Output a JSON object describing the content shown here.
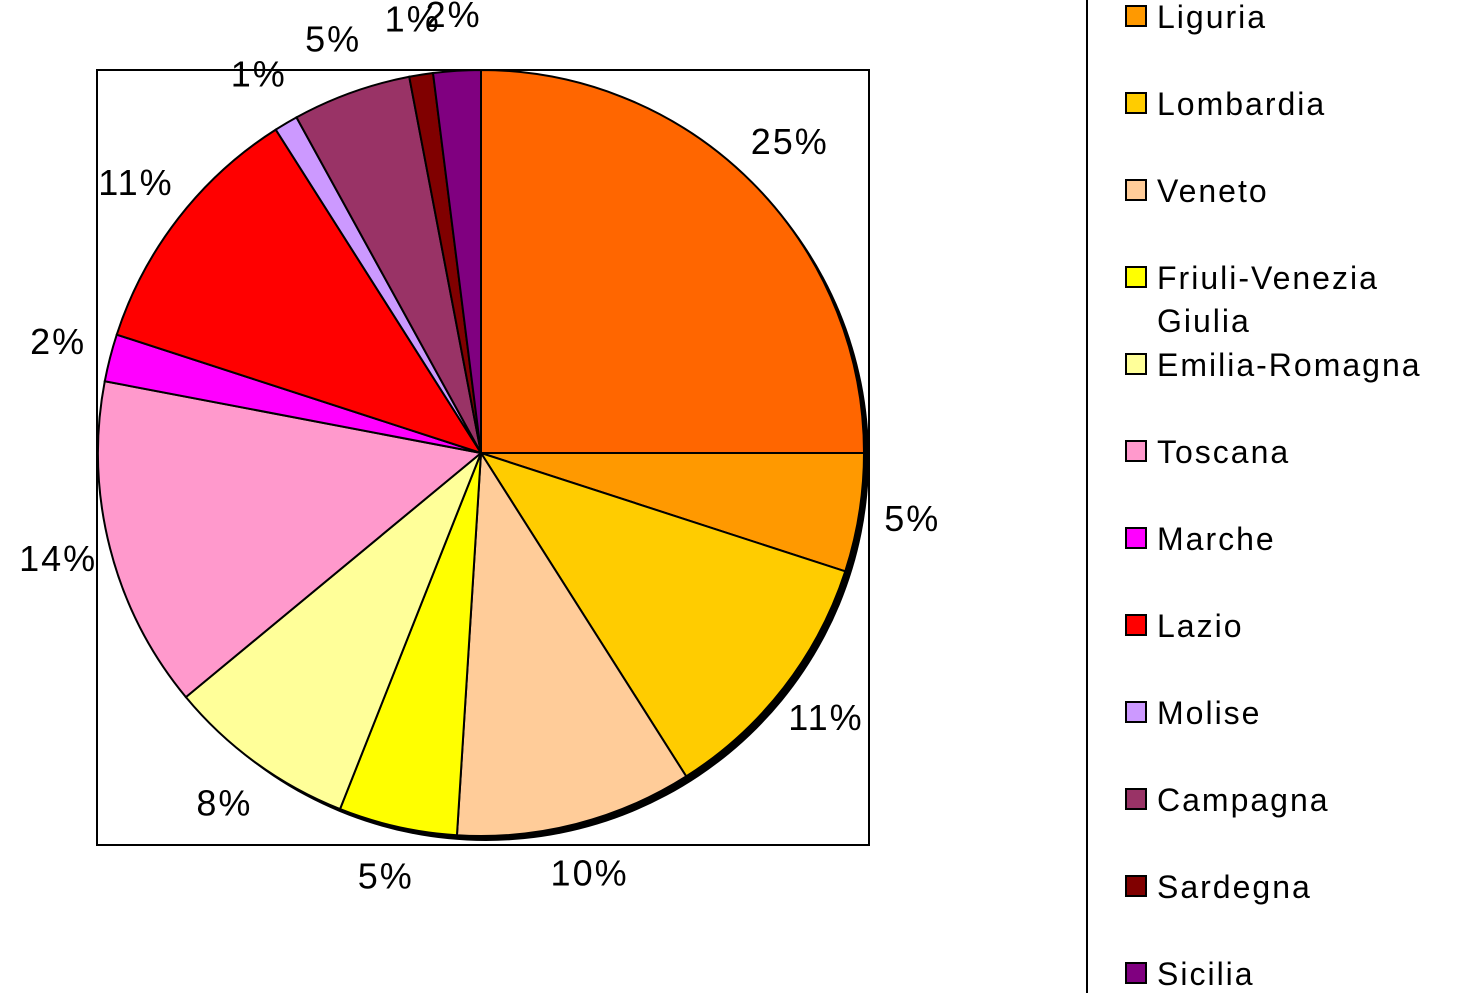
{
  "chart_data": {
    "type": "pie",
    "categories": [
      null,
      "Liguria",
      "Lombardia",
      "Veneto",
      "Friuli-Venezia Giulia",
      "Emilia-Romagna",
      "Toscana",
      "Marche",
      "Lazio",
      "Molise",
      "Campagna",
      "Sardegna",
      "Sicilia"
    ],
    "values": [
      25,
      5,
      11,
      10,
      5,
      8,
      14,
      2,
      11,
      1,
      5,
      1,
      2
    ],
    "value_labels": [
      "25%",
      "5%",
      "11%",
      "10%",
      "5%",
      "8%",
      "14%",
      "2%",
      "11%",
      "1%",
      "5%",
      "1%",
      "2%"
    ],
    "colors": [
      "#ff6600",
      "#ff9900",
      "#ffcc00",
      "#ffcc99",
      "#ffff00",
      "#ffff99",
      "#ff99cc",
      "#ff00ff",
      "#ff0000",
      "#cc99ff",
      "#993366",
      "#800000",
      "#800080"
    ]
  }
}
